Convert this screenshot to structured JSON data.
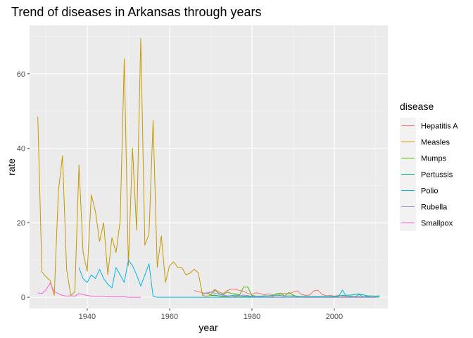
{
  "chart_data": {
    "type": "line",
    "title": "Trend of diseases in Arkansas through years",
    "xlabel": "year",
    "ylabel": "rate",
    "xlim": [
      1926,
      2013
    ],
    "ylim": [
      -3,
      73
    ],
    "x_ticks": [
      1940,
      1960,
      1980,
      2000
    ],
    "x_tick_labels": [
      "1940",
      "1960",
      "1980",
      "2000"
    ],
    "y_ticks": [
      0,
      20,
      40,
      60
    ],
    "y_tick_labels": [
      "0",
      "20",
      "40",
      "60"
    ],
    "grid": true,
    "legend_title": "disease",
    "legend_position": "right",
    "series": [
      {
        "name": "Hepatitis A",
        "color": "#F8766D",
        "x": [
          1966,
          1967,
          1968,
          1969,
          1970,
          1971,
          1972,
          1973,
          1974,
          1975,
          1976,
          1977,
          1978,
          1979,
          1980,
          1981,
          1982,
          1983,
          1984,
          1985,
          1986,
          1987,
          1988,
          1989,
          1990,
          1991,
          1992,
          1993,
          1994,
          1995,
          1996,
          1997,
          1998,
          1999,
          2000,
          2001,
          2002,
          2003,
          2004,
          2005,
          2006,
          2007,
          2008,
          2009,
          2010,
          2011
        ],
        "y": [
          1.8,
          1.5,
          1.2,
          1.0,
          1.3,
          2.1,
          1.4,
          1.0,
          1.8,
          2.2,
          2.1,
          1.8,
          1.6,
          1.0,
          0.8,
          1.2,
          1.0,
          0.6,
          0.9,
          0.7,
          0.5,
          0.8,
          1.1,
          0.9,
          1.4,
          1.7,
          0.8,
          0.5,
          0.6,
          1.7,
          1.9,
          0.8,
          0.4,
          0.5,
          0.3,
          0.5,
          0.3,
          0.2,
          0.3,
          0.2,
          0.2,
          0.1,
          0.2,
          0.1,
          0.1,
          0.1
        ]
      },
      {
        "name": "Measles",
        "color": "#C49A00",
        "x": [
          1928,
          1929,
          1930,
          1931,
          1932,
          1933,
          1934,
          1935,
          1936,
          1937,
          1938,
          1939,
          1940,
          1941,
          1942,
          1943,
          1944,
          1945,
          1946,
          1947,
          1948,
          1949,
          1950,
          1951,
          1952,
          1953,
          1954,
          1955,
          1956,
          1957,
          1958,
          1959,
          1960,
          1961,
          1962,
          1963,
          1964,
          1965,
          1966,
          1967,
          1968,
          1969,
          1970,
          1971,
          1972,
          1973,
          1974,
          1975,
          1976,
          1977,
          1978,
          1979,
          1980,
          1982,
          1984,
          1986,
          1988,
          1990,
          1992,
          1995,
          2000,
          2005,
          2010
        ],
        "y": [
          48.5,
          6.8,
          5.5,
          4.5,
          0.5,
          28.5,
          38.0,
          7.5,
          0.5,
          1.5,
          35.5,
          12.0,
          7.0,
          27.5,
          23.0,
          15.0,
          20.0,
          6.0,
          16.0,
          12.0,
          20.5,
          64.0,
          8.5,
          40.0,
          18.0,
          69.5,
          14.0,
          17.0,
          47.5,
          8.0,
          16.5,
          4.0,
          8.5,
          9.5,
          8.0,
          8.0,
          6.0,
          6.5,
          7.5,
          6.5,
          0.5,
          0.3,
          0.5,
          0.6,
          0.3,
          0.2,
          0.2,
          0.3,
          0.2,
          0.1,
          0.1,
          0.1,
          0.1,
          0.1,
          0.0,
          0.0,
          0.0,
          0.1,
          0.0,
          0.0,
          0.0,
          0.0,
          0.0
        ]
      },
      {
        "name": "Mumps",
        "color": "#53B400",
        "x": [
          1968,
          1969,
          1970,
          1971,
          1972,
          1973,
          1974,
          1975,
          1976,
          1977,
          1978,
          1979,
          1980,
          1981,
          1982,
          1983,
          1984,
          1985,
          1986,
          1987,
          1988,
          1989,
          1990,
          1991,
          1992,
          1993,
          1994,
          1995,
          2000,
          2005,
          2010
        ],
        "y": [
          0.8,
          1.2,
          0.6,
          1.9,
          1.0,
          0.7,
          1.4,
          1.0,
          0.9,
          0.6,
          2.8,
          2.7,
          0.5,
          0.3,
          0.2,
          0.1,
          0.1,
          0.2,
          1.0,
          1.1,
          0.3,
          1.3,
          0.6,
          0.1,
          0.1,
          0.0,
          0.0,
          0.0,
          0.0,
          0.0,
          0.0
        ]
      },
      {
        "name": "Pertussis",
        "color": "#00C094",
        "x": [
          1970,
          1972,
          1974,
          1976,
          1978,
          1980,
          1982,
          1984,
          1986,
          1988,
          1990,
          1992,
          1994,
          1996,
          1998,
          2000,
          2002,
          2004,
          2006,
          2008,
          2010,
          2011
        ],
        "y": [
          0.5,
          0.4,
          0.3,
          0.6,
          0.3,
          0.2,
          0.3,
          0.4,
          0.6,
          0.3,
          0.4,
          0.2,
          0.3,
          0.2,
          0.3,
          0.2,
          0.5,
          0.6,
          0.9,
          0.4,
          0.3,
          0.4
        ]
      },
      {
        "name": "Polio",
        "color": "#00B6EB",
        "x": [
          1938,
          1939,
          1940,
          1941,
          1942,
          1943,
          1944,
          1945,
          1946,
          1947,
          1948,
          1949,
          1950,
          1951,
          1952,
          1953,
          1954,
          1955,
          1956,
          1957,
          1960,
          1965,
          1970,
          1975,
          1980,
          1985,
          1990,
          1995,
          2000,
          2001,
          2002,
          2003,
          2004,
          2005,
          2006,
          2007,
          2008,
          2009,
          2010,
          2011
        ],
        "y": [
          8.0,
          5.0,
          4.0,
          6.0,
          5.0,
          7.5,
          5.0,
          3.5,
          2.5,
          8.0,
          6.0,
          4.0,
          10.0,
          8.5,
          6.0,
          3.0,
          6.0,
          9.0,
          0.2,
          0.0,
          0.0,
          0.0,
          0.0,
          0.0,
          0.0,
          0.0,
          0.0,
          0.0,
          0.0,
          0.2,
          1.9,
          0.1,
          0.2,
          0.1,
          0.8,
          0.1,
          0.3,
          0.0,
          0.0,
          0.1
        ]
      },
      {
        "name": "Rubella",
        "color": "#A58AFF",
        "x": [
          1968,
          1970,
          1972,
          1974,
          1976,
          1978,
          1980,
          1982,
          1985,
          1990,
          1995,
          2000,
          2005,
          2010
        ],
        "y": [
          0.9,
          1.4,
          0.8,
          0.4,
          0.3,
          0.6,
          0.3,
          0.1,
          0.1,
          0.0,
          0.0,
          0.0,
          0.0,
          0.0
        ]
      },
      {
        "name": "Smallpox",
        "color": "#FB61D7",
        "x": [
          1928,
          1929,
          1930,
          1931,
          1932,
          1933,
          1934,
          1935,
          1936,
          1937,
          1938,
          1939,
          1940,
          1941,
          1942,
          1943,
          1944,
          1945,
          1946,
          1947,
          1948,
          1949,
          1950,
          1951,
          1952,
          1953
        ],
        "y": [
          1.2,
          1.0,
          2.0,
          3.8,
          1.5,
          1.0,
          0.5,
          0.3,
          0.4,
          0.3,
          1.0,
          0.7,
          0.5,
          0.3,
          0.2,
          0.3,
          0.2,
          0.1,
          0.1,
          0.1,
          0.1,
          0.1,
          0.0,
          0.0,
          0.0,
          0.0
        ]
      }
    ]
  }
}
